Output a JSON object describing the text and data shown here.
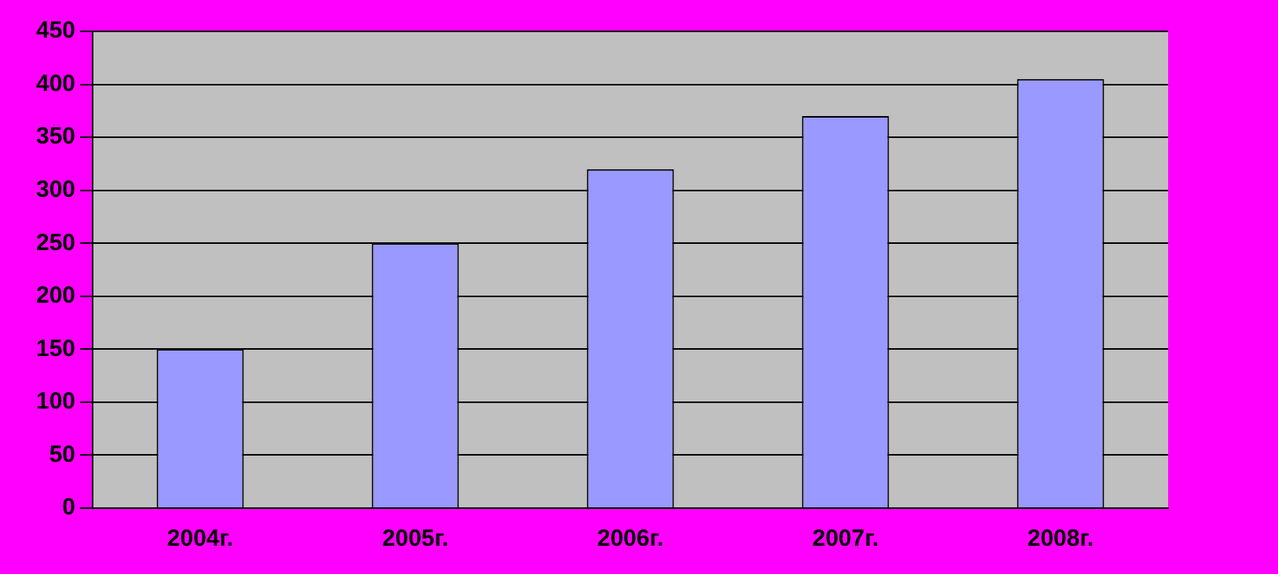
{
  "chart_data": {
    "type": "bar",
    "categories": [
      "2004г.",
      "2005г.",
      "2006г.",
      "2007г.",
      "2008г."
    ],
    "values": [
      150,
      250,
      320,
      370,
      405
    ],
    "color": "#9999ff",
    "ylim": [
      0,
      450
    ],
    "yticks": [
      0,
      50,
      100,
      150,
      200,
      250,
      300,
      350,
      400,
      450
    ],
    "grid": "y"
  }
}
